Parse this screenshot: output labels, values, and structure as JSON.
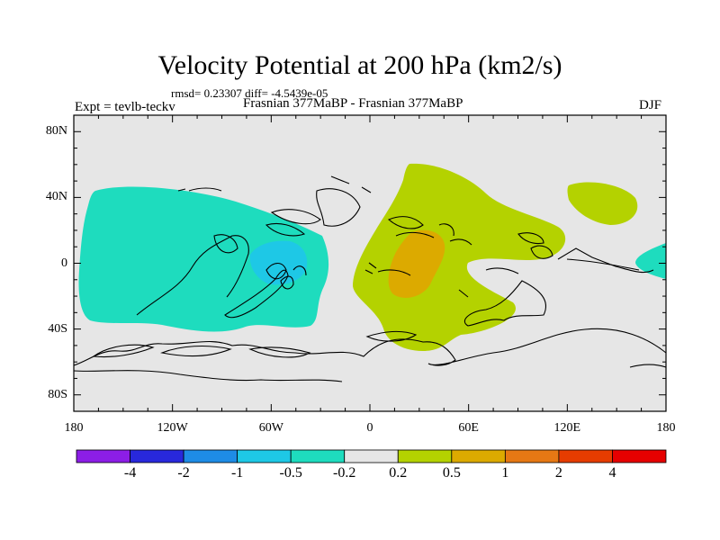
{
  "title": "Velocity Potential at 200 hPa (km2/s)",
  "stats": "rmsd= 0.23307 diff= -4.5439e-05",
  "experiment": "Expt = tevlb-teckv",
  "subtitle": "Frasnian 377MaBP - Frasnian 377MaBP",
  "season": "DJF",
  "y_axis": {
    "ticks": [
      {
        "lat": 80,
        "label": "80N"
      },
      {
        "lat": 40,
        "label": "40N"
      },
      {
        "lat": 0,
        "label": "0"
      },
      {
        "lat": -40,
        "label": "40S"
      },
      {
        "lat": -80,
        "label": "80S"
      }
    ]
  },
  "x_axis": {
    "ticks": [
      {
        "lon": -180,
        "label": "180"
      },
      {
        "lon": -120,
        "label": "120W"
      },
      {
        "lon": -60,
        "label": "60W"
      },
      {
        "lon": 0,
        "label": "0"
      },
      {
        "lon": 60,
        "label": "60E"
      },
      {
        "lon": 120,
        "label": "120E"
      },
      {
        "lon": 180,
        "label": "180"
      }
    ]
  },
  "colorbar": {
    "colors": [
      "#8c1ee6",
      "#2828dc",
      "#1e8ce6",
      "#1ec8e6",
      "#1edcbe",
      "#e6e6e6",
      "#b4d200",
      "#dcaa00",
      "#e67814",
      "#e63c00",
      "#e60000"
    ],
    "labels": [
      "-4",
      "-2",
      "-1",
      "-0.5",
      "-0.2",
      "0.2",
      "0.5",
      "1",
      "2",
      "4"
    ]
  },
  "colors": {
    "background": "#e6e6e6",
    "negative_weak": "#1edcbe",
    "negative_mid": "#1ec8e6",
    "positive_weak": "#b4d200",
    "positive_mid": "#dcaa00",
    "coast": "#000000"
  }
}
